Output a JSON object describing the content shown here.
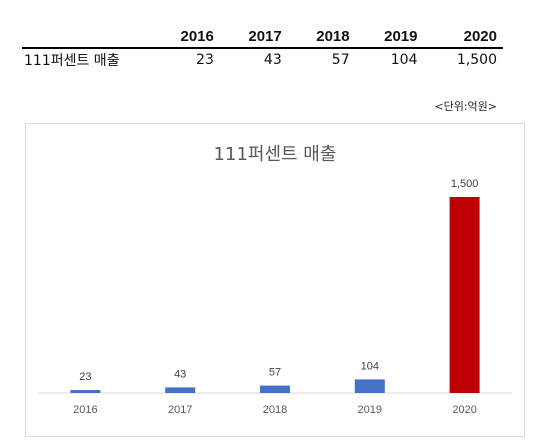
{
  "table": {
    "row_label": "111퍼센트 매출",
    "years": [
      "2016",
      "2017",
      "2018",
      "2019",
      "2020"
    ],
    "values": [
      "23",
      "43",
      "57",
      "104",
      "1,500"
    ]
  },
  "unit_note": "<단위:억원>",
  "chart_data": {
    "type": "bar",
    "title": "111퍼센트 매출",
    "categories": [
      "2016",
      "2017",
      "2018",
      "2019",
      "2020"
    ],
    "values": [
      23,
      43,
      57,
      104,
      1500
    ],
    "value_labels": [
      "23",
      "43",
      "57",
      "104",
      "1,500"
    ],
    "colors": [
      "#4472c4",
      "#4472c4",
      "#4472c4",
      "#4472c4",
      "#c00000"
    ],
    "ylim": [
      0,
      1500
    ],
    "grid": false,
    "legend": "none",
    "xlabel": "",
    "ylabel": ""
  }
}
